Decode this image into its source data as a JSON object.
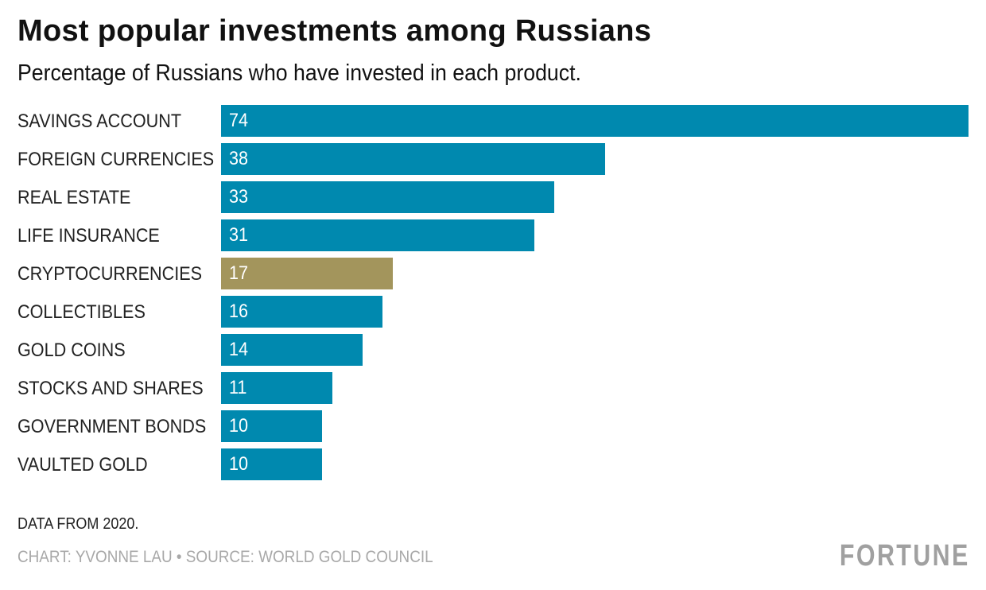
{
  "chart_data": {
    "type": "bar",
    "orientation": "horizontal",
    "title": "Most popular investments among Russians",
    "subtitle": "Percentage of Russians who have invested in each product.",
    "categories": [
      "SAVINGS ACCOUNT",
      "FOREIGN CURRENCIES",
      "REAL ESTATE",
      "LIFE INSURANCE",
      "CRYPTOCURRENCIES",
      "COLLECTIBLES",
      "GOLD COINS",
      "STOCKS AND SHARES",
      "GOVERNMENT BONDS",
      "VAULTED GOLD"
    ],
    "values": [
      74,
      38,
      33,
      31,
      17,
      16,
      14,
      11,
      10,
      10
    ],
    "highlight": "CRYPTOCURRENCIES",
    "colors": {
      "default": "#0089AF",
      "highlight": "#A3955C"
    },
    "xlim": [
      0,
      74
    ],
    "xlabel": "",
    "ylabel": "",
    "grid": false
  },
  "footer": {
    "note": "DATA FROM 2020.",
    "credit": "CHART: YVONNE LAU • SOURCE: WORLD GOLD COUNCIL",
    "logo": "FORTUNE"
  }
}
